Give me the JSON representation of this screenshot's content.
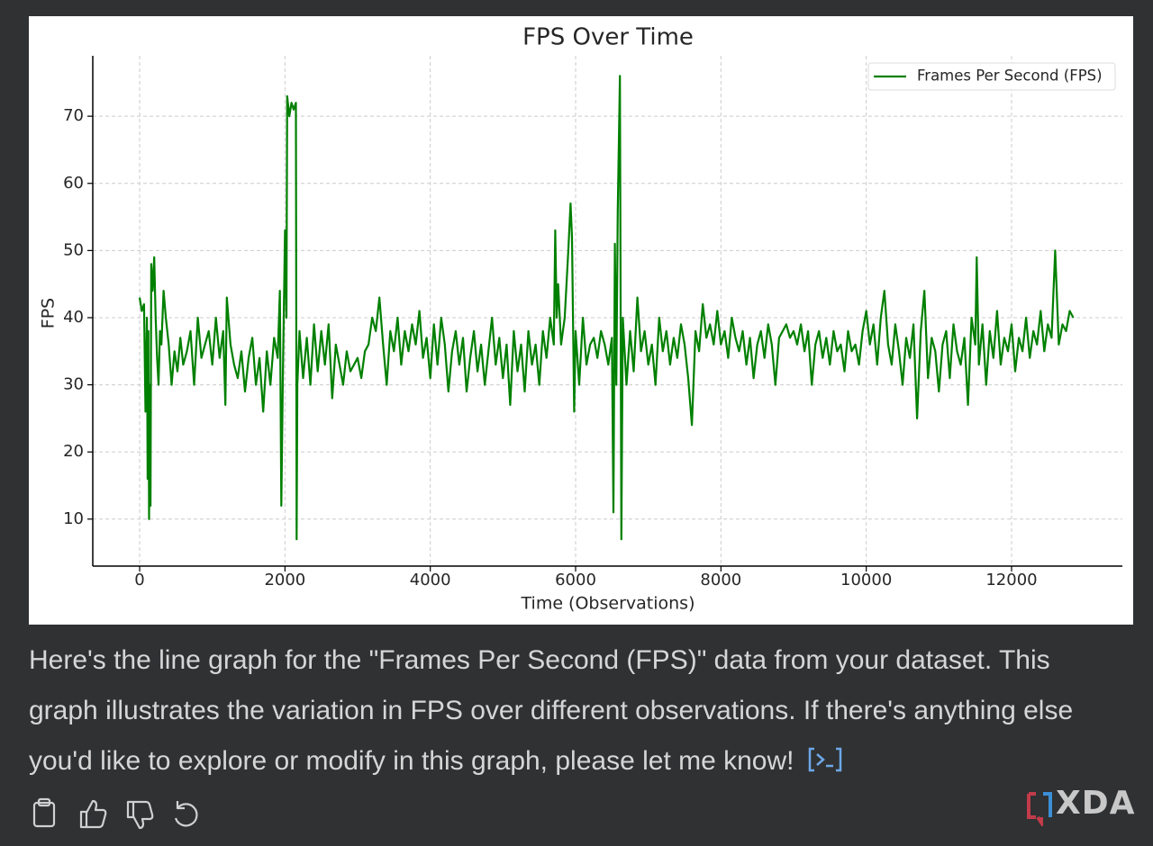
{
  "chart_data": {
    "type": "line",
    "title": "FPS Over Time",
    "x_label": "Time (Observations)",
    "y_label": "FPS",
    "x": [
      0,
      30,
      60,
      80,
      100,
      110,
      120,
      130,
      140,
      150,
      160,
      180,
      200,
      220,
      240,
      260,
      280,
      300,
      330,
      360,
      400,
      440,
      480,
      520,
      560,
      600,
      650,
      700,
      750,
      800,
      850,
      900,
      950,
      1000,
      1050,
      1100,
      1150,
      1180,
      1200,
      1250,
      1300,
      1350,
      1400,
      1450,
      1500,
      1550,
      1600,
      1650,
      1700,
      1750,
      1800,
      1850,
      1900,
      1930,
      1950,
      1970,
      2000,
      2020,
      2030,
      2060,
      2090,
      2120,
      2150,
      2160,
      2170,
      2200,
      2250,
      2300,
      2350,
      2400,
      2450,
      2500,
      2550,
      2600,
      2650,
      2700,
      2750,
      2800,
      2850,
      2900,
      2950,
      3000,
      3050,
      3100,
      3150,
      3200,
      3250,
      3300,
      3350,
      3400,
      3450,
      3500,
      3550,
      3600,
      3650,
      3700,
      3750,
      3800,
      3850,
      3900,
      3950,
      4000,
      4050,
      4100,
      4150,
      4200,
      4250,
      4300,
      4350,
      4400,
      4450,
      4500,
      4550,
      4600,
      4650,
      4700,
      4750,
      4800,
      4850,
      4900,
      4950,
      5000,
      5050,
      5100,
      5150,
      5200,
      5250,
      5300,
      5350,
      5400,
      5450,
      5500,
      5550,
      5600,
      5650,
      5700,
      5720,
      5740,
      5760,
      5800,
      5850,
      5900,
      5930,
      5950,
      5980,
      6000,
      6050,
      6100,
      6150,
      6200,
      6250,
      6300,
      6350,
      6400,
      6450,
      6500,
      6520,
      6540,
      6560,
      6580,
      6610,
      6630,
      6650,
      6700,
      6750,
      6800,
      6850,
      6900,
      6950,
      7000,
      7050,
      7100,
      7150,
      7200,
      7250,
      7300,
      7350,
      7400,
      7450,
      7500,
      7550,
      7600,
      7650,
      7700,
      7750,
      7800,
      7850,
      7900,
      7950,
      8000,
      8050,
      8100,
      8150,
      8200,
      8250,
      8300,
      8350,
      8400,
      8450,
      8500,
      8550,
      8600,
      8650,
      8700,
      8750,
      8800,
      8850,
      8900,
      8950,
      9000,
      9050,
      9100,
      9150,
      9200,
      9250,
      9300,
      9350,
      9400,
      9450,
      9500,
      9550,
      9600,
      9650,
      9700,
      9750,
      9800,
      9850,
      9900,
      9950,
      10000,
      10050,
      10100,
      10150,
      10200,
      10250,
      10300,
      10350,
      10400,
      10450,
      10500,
      10550,
      10600,
      10650,
      10700,
      10750,
      10800,
      10850,
      10900,
      10950,
      11000,
      11050,
      11100,
      11150,
      11200,
      11250,
      11300,
      11350,
      11400,
      11450,
      11500,
      11520,
      11550,
      11600,
      11650,
      11700,
      11750,
      11800,
      11850,
      11900,
      11950,
      12000,
      12050,
      12100,
      12150,
      12200,
      12250,
      12300,
      12350,
      12400,
      12450,
      12500,
      12550,
      12600,
      12650,
      12700,
      12750,
      12800,
      12850
    ],
    "series": [
      {
        "name": "Frames Per Second (FPS)",
        "color": "#008000",
        "values": [
          43,
          41,
          42,
          26,
          40,
          16,
          38,
          10,
          30,
          12,
          48,
          44,
          49,
          40,
          34,
          30,
          38,
          36,
          44,
          40,
          36,
          30,
          35,
          32,
          37,
          33,
          35,
          38,
          30,
          40,
          34,
          36,
          38,
          33,
          40,
          34,
          38,
          27,
          43,
          36,
          33,
          31,
          35,
          29,
          34,
          37,
          30,
          34,
          26,
          35,
          30,
          37,
          34,
          44,
          12,
          30,
          53,
          40,
          73,
          70,
          72,
          71,
          72,
          7,
          30,
          38,
          31,
          37,
          30,
          39,
          32,
          38,
          33,
          39,
          28,
          36,
          33,
          30,
          35,
          32,
          33,
          34,
          31,
          35,
          36,
          40,
          38,
          43,
          36,
          30,
          38,
          35,
          40,
          33,
          38,
          35,
          39,
          36,
          41,
          34,
          37,
          31,
          39,
          33,
          40,
          36,
          29,
          35,
          38,
          33,
          37,
          29,
          34,
          38,
          32,
          36,
          30,
          35,
          40,
          33,
          37,
          31,
          36,
          27,
          38,
          32,
          36,
          29,
          38,
          33,
          36,
          30,
          38,
          34,
          40,
          36,
          53,
          40,
          45,
          36,
          40,
          50,
          57,
          52,
          26,
          38,
          30,
          40,
          33,
          36,
          37,
          34,
          38,
          36,
          33,
          37,
          11,
          51,
          30,
          56,
          76,
          7,
          40,
          30,
          38,
          32,
          43,
          35,
          38,
          33,
          36,
          30,
          40,
          35,
          38,
          33,
          37,
          34,
          39,
          36,
          31,
          24,
          38,
          35,
          42,
          37,
          39,
          36,
          41,
          36,
          38,
          34,
          40,
          37,
          35,
          38,
          33,
          37,
          31,
          36,
          38,
          34,
          39,
          36,
          30,
          37,
          38,
          39,
          37,
          38,
          36,
          39,
          35,
          38,
          30,
          36,
          38,
          34,
          37,
          33,
          38,
          35,
          36,
          32,
          38,
          35,
          36,
          33,
          38,
          41,
          36,
          39,
          33,
          40,
          44,
          36,
          33,
          39,
          35,
          30,
          37,
          34,
          39,
          25,
          38,
          44,
          31,
          37,
          35,
          29,
          36,
          38,
          31,
          39,
          35,
          33,
          37,
          27,
          40,
          36,
          49,
          33,
          39,
          30,
          38,
          34,
          41,
          33,
          37,
          35,
          39,
          32,
          37,
          35,
          40,
          34,
          38,
          36,
          41,
          35,
          39,
          37,
          50,
          36,
          39,
          38,
          41,
          40
        ]
      }
    ],
    "xlim": [
      -645,
      13525
    ],
    "ylim": [
      3.0,
      79.0
    ],
    "xticks": [
      0,
      2000,
      4000,
      6000,
      8000,
      10000,
      12000
    ],
    "yticks": [
      10,
      20,
      30,
      40,
      50,
      60,
      70
    ],
    "grid": true,
    "legend": "upper right"
  },
  "message": {
    "text": "Here's the line graph for the \"Frames Per Second (FPS)\" data from your dataset. This graph illustrates the variation in FPS over different observations. If there's anything else you'd like to explore or modify in this graph, please let me know!"
  },
  "watermark": "XDA"
}
